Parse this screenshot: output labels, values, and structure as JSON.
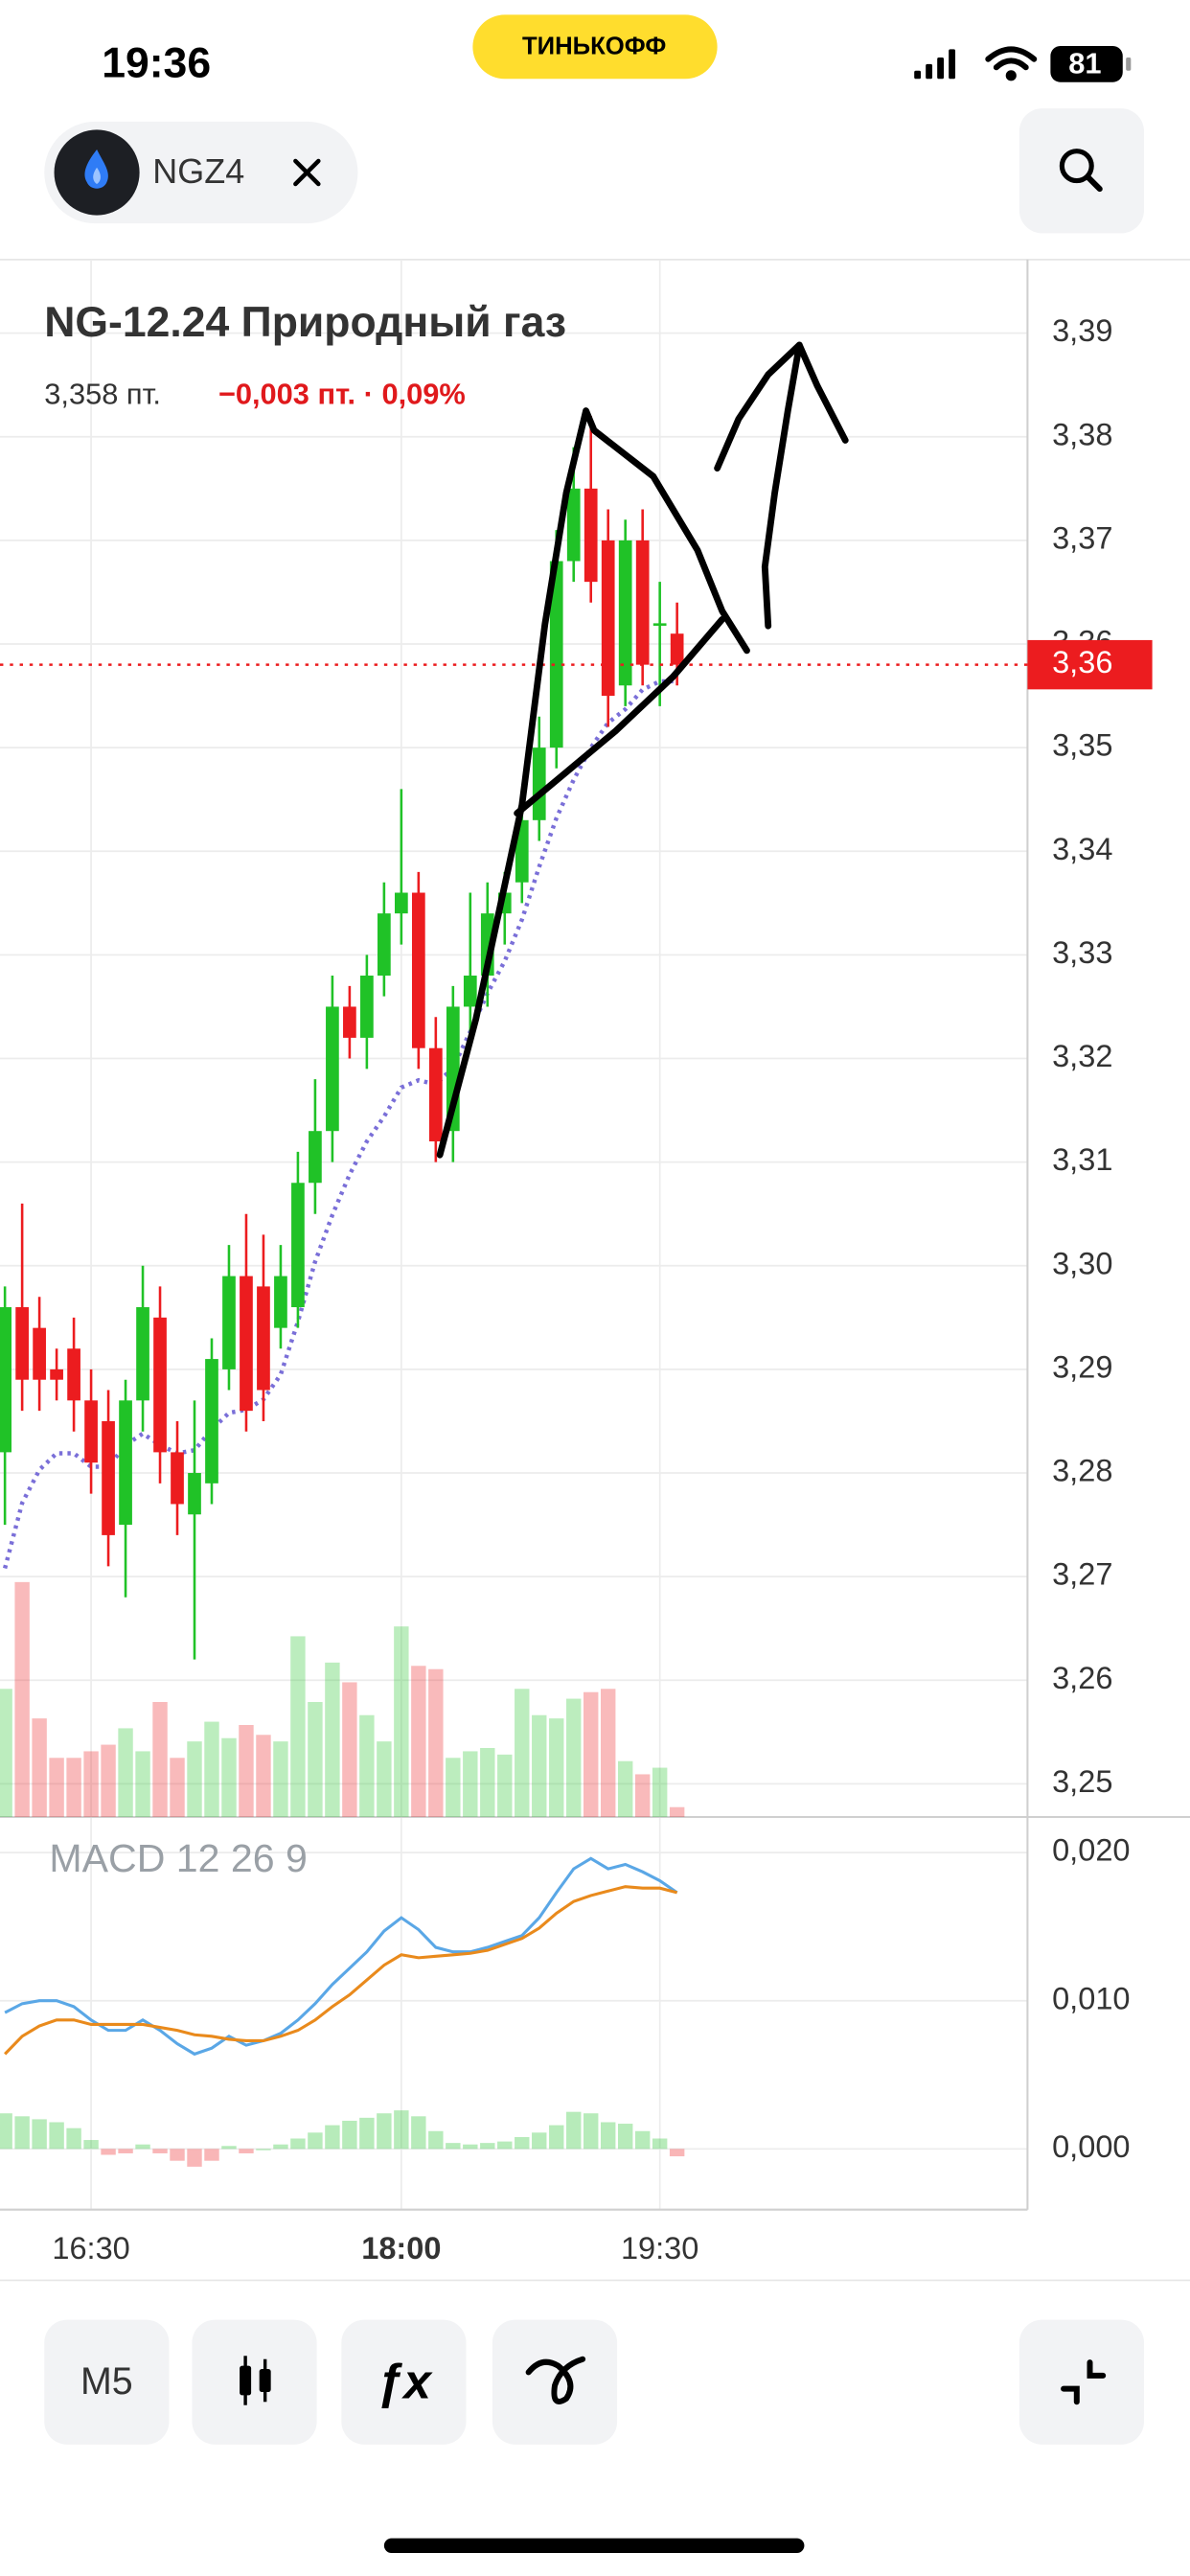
{
  "status_bar": {
    "time": "19:36",
    "carrier": "ТИНЬКОФФ",
    "battery": "81"
  },
  "header": {
    "ticker": "NGZ4"
  },
  "toolbar": {
    "timeframe": "M5",
    "indicator_button": "ƒx"
  },
  "chart_data": {
    "type": "candlestick",
    "title": "NG-12.24 Природный газ",
    "price_text": "3,358 пт.",
    "change_text": "−0,003 пт. · 0,09%",
    "categories": [
      null,
      null,
      null,
      null,
      null,
      "16:30",
      null,
      null,
      null,
      null,
      null,
      null,
      null,
      null,
      null,
      null,
      null,
      null,
      null,
      null,
      null,
      null,
      null,
      "18:00",
      null,
      null,
      null,
      null,
      null,
      null,
      null,
      null,
      null,
      null,
      null,
      null,
      null,
      null,
      "19:30",
      null
    ],
    "open": [
      3.282,
      3.296,
      3.294,
      3.29,
      3.292,
      3.287,
      3.285,
      3.275,
      3.287,
      3.295,
      3.282,
      3.276,
      3.279,
      3.29,
      3.299,
      3.298,
      3.294,
      3.296,
      3.308,
      3.313,
      3.325,
      3.322,
      3.328,
      3.334,
      3.336,
      3.321,
      3.313,
      3.325,
      3.328,
      3.334,
      3.337,
      3.343,
      3.35,
      3.368,
      3.375,
      3.37,
      3.356,
      3.37,
      3.362,
      3.361
    ],
    "high": [
      3.298,
      3.306,
      3.297,
      3.292,
      3.295,
      3.29,
      3.288,
      3.289,
      3.3,
      3.298,
      3.285,
      3.287,
      3.293,
      3.302,
      3.305,
      3.303,
      3.302,
      3.311,
      3.318,
      3.328,
      3.327,
      3.33,
      3.337,
      3.346,
      3.338,
      3.324,
      3.327,
      3.336,
      3.337,
      3.338,
      3.346,
      3.353,
      3.371,
      3.379,
      3.382,
      3.373,
      3.372,
      3.373,
      3.366,
      3.364
    ],
    "low": [
      3.275,
      3.286,
      3.286,
      3.287,
      3.284,
      3.278,
      3.271,
      3.268,
      3.284,
      3.279,
      3.274,
      3.262,
      3.277,
      3.288,
      3.284,
      3.285,
      3.292,
      3.294,
      3.305,
      3.31,
      3.32,
      3.319,
      3.326,
      3.331,
      3.319,
      3.31,
      3.31,
      3.322,
      3.325,
      3.331,
      3.335,
      3.341,
      3.348,
      3.366,
      3.364,
      3.352,
      3.354,
      3.356,
      3.354,
      3.356
    ],
    "close": [
      3.296,
      3.289,
      3.289,
      3.289,
      3.287,
      3.281,
      3.274,
      3.287,
      3.296,
      3.282,
      3.277,
      3.28,
      3.291,
      3.299,
      3.286,
      3.288,
      3.299,
      3.308,
      3.313,
      3.325,
      3.322,
      3.328,
      3.334,
      3.336,
      3.321,
      3.312,
      3.325,
      3.328,
      3.334,
      3.336,
      3.343,
      3.35,
      3.368,
      3.375,
      3.366,
      3.355,
      3.37,
      3.358,
      3.362,
      3.358
    ],
    "up_color": "#20c227",
    "down_color": "#ec1c1f",
    "moving_average": {
      "color": "#7a6fd8",
      "values": [
        3.2708,
        3.2771,
        3.2803,
        3.2819,
        3.2819,
        3.2806,
        3.2806,
        3.2827,
        3.2838,
        3.2827,
        3.2819,
        3.2822,
        3.2842,
        3.2858,
        3.2861,
        3.2871,
        3.2895,
        3.2946,
        3.3004,
        3.3049,
        3.3088,
        3.312,
        3.3144,
        3.3172,
        3.3179,
        3.3175,
        3.3191,
        3.3226,
        3.3263,
        3.3294,
        3.3334,
        3.3385,
        3.3432,
        3.3469,
        3.35,
        3.3524,
        3.3537,
        3.3556,
        3.3564,
        3.3564
      ]
    },
    "volume": [
      78,
      143,
      60,
      36,
      36,
      40,
      44,
      54,
      40,
      70,
      36,
      46,
      58,
      48,
      56,
      50,
      46,
      110,
      70,
      94,
      82,
      62,
      46,
      116,
      92,
      90,
      36,
      40,
      42,
      38,
      78,
      62,
      60,
      72,
      76,
      78,
      34,
      26,
      30,
      6
    ],
    "ylim": [
      3.2468,
      3.3971
    ],
    "yticks": [
      {
        "value": 3.25,
        "label": "3,25"
      },
      {
        "value": 3.26,
        "label": "3,26"
      },
      {
        "value": 3.27,
        "label": "3,27"
      },
      {
        "value": 3.28,
        "label": "3,28"
      },
      {
        "value": 3.29,
        "label": "3,29"
      },
      {
        "value": 3.3,
        "label": "3,30"
      },
      {
        "value": 3.31,
        "label": "3,31"
      },
      {
        "value": 3.32,
        "label": "3,32"
      },
      {
        "value": 3.33,
        "label": "3,33"
      },
      {
        "value": 3.34,
        "label": "3,34"
      },
      {
        "value": 3.35,
        "label": "3,35"
      },
      {
        "value": 3.36,
        "label": "3,36"
      },
      {
        "value": 3.37,
        "label": "3,37"
      },
      {
        "value": 3.38,
        "label": "3,38"
      },
      {
        "value": 3.39,
        "label": "3,39"
      }
    ],
    "last_price": {
      "value": 3.358,
      "label": "3,36"
    },
    "grid": true,
    "macd": {
      "label": "MACD 12 26 9",
      "ylim": [
        -0.0041,
        0.0224
      ],
      "yticks": [
        {
          "value": 0,
          "label": "0,000"
        },
        {
          "value": 0.01,
          "label": "0,010"
        },
        {
          "value": 0.02,
          "label": "0,020"
        }
      ],
      "series": [
        {
          "color": "#5aa7e6",
          "values": [
            0.0092,
            0.0098,
            0.01,
            0.01,
            0.0096,
            0.0087,
            0.008,
            0.008,
            0.0087,
            0.008,
            0.0071,
            0.0064,
            0.0068,
            0.0076,
            0.007,
            0.0073,
            0.0078,
            0.0087,
            0.0098,
            0.0111,
            0.0122,
            0.0133,
            0.0147,
            0.0156,
            0.0148,
            0.0136,
            0.0133,
            0.0133,
            0.0136,
            0.014,
            0.0144,
            0.0156,
            0.0173,
            0.0189,
            0.0196,
            0.0189,
            0.0192,
            0.0187,
            0.0181,
            0.0173
          ]
        },
        {
          "color": "#e98a1c",
          "values": [
            0.0064,
            0.0076,
            0.0083,
            0.0087,
            0.0087,
            0.0084,
            0.0084,
            0.0084,
            0.0084,
            0.0082,
            0.008,
            0.0077,
            0.0076,
            0.0074,
            0.0073,
            0.0073,
            0.0076,
            0.008,
            0.0087,
            0.0096,
            0.0104,
            0.0114,
            0.0124,
            0.0131,
            0.0129,
            0.013,
            0.0131,
            0.0132,
            0.0134,
            0.0138,
            0.0142,
            0.0149,
            0.0159,
            0.0167,
            0.0171,
            0.0174,
            0.0177,
            0.0176,
            0.0176,
            0.0173
          ]
        }
      ],
      "histogram": [
        0.0024,
        0.0022,
        0.002,
        0.0018,
        0.0014,
        0.0006,
        -0.0004,
        -0.0003,
        0.0003,
        -0.0003,
        -0.0008,
        -0.0012,
        -0.0008,
        0.0002,
        -0.0003,
        0,
        0.0003,
        0.0007,
        0.0011,
        0.0016,
        0.0019,
        0.0021,
        0.0024,
        0.0026,
        0.0022,
        0.0012,
        0.0004,
        0.0003,
        0.0004,
        0.0005,
        0.0008,
        0.0011,
        0.0016,
        0.0025,
        0.0024,
        0.0018,
        0.0017,
        0.0012,
        0.0007,
        -0.0005
      ]
    }
  }
}
